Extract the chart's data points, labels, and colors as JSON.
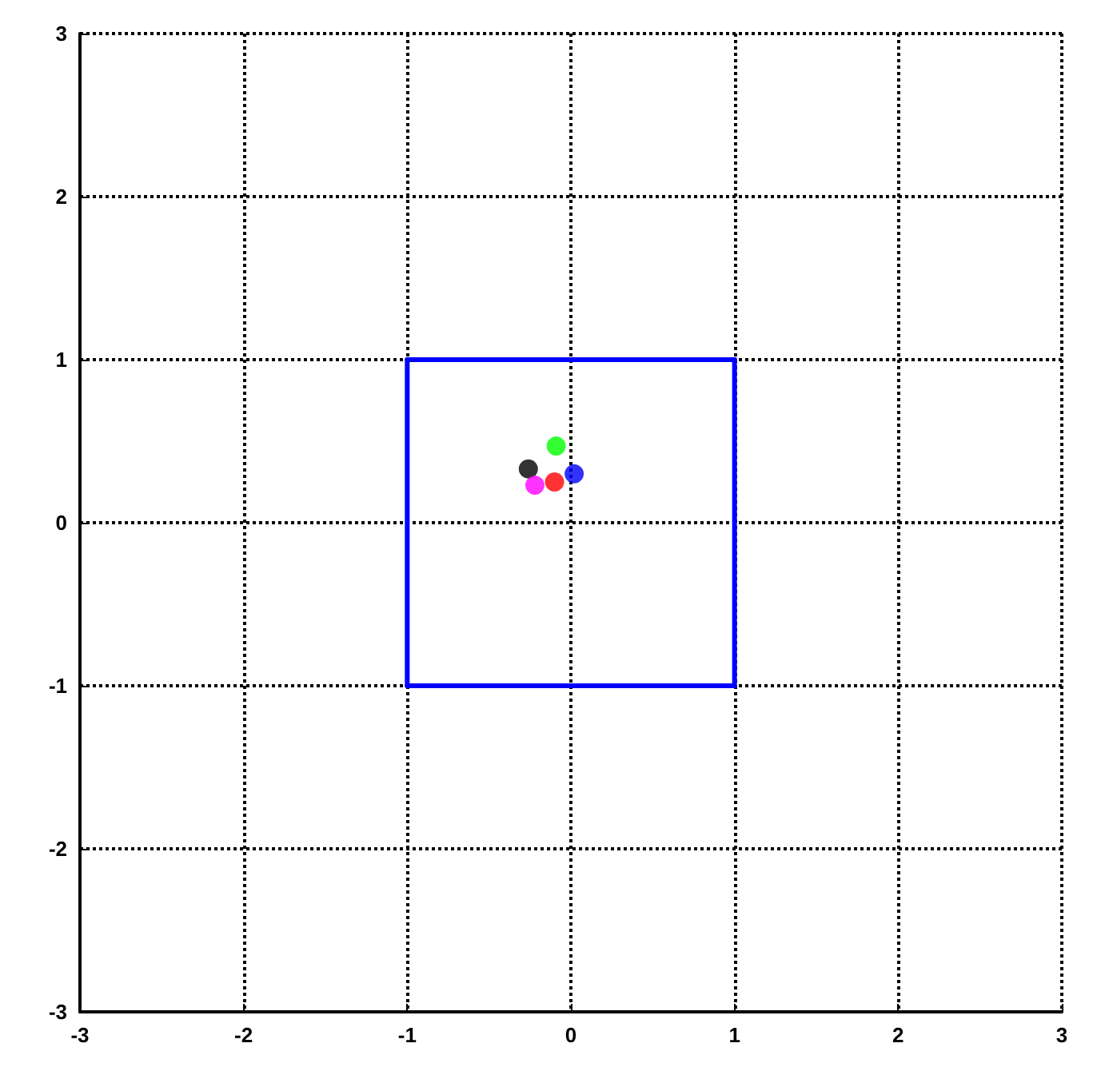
{
  "chart_data": {
    "type": "scatter",
    "xlim": [
      -3,
      3
    ],
    "ylim": [
      -3,
      3
    ],
    "xticks": [
      -3,
      -2,
      -1,
      0,
      1,
      2,
      3
    ],
    "yticks": [
      -3,
      -2,
      -1,
      0,
      1,
      2,
      3
    ],
    "grid": true,
    "marker": "circle",
    "series": [
      {
        "type": "line",
        "color": "#0000ff",
        "x": [
          -1,
          1
        ],
        "values": [
          -1,
          -1
        ],
        "marker": "none",
        "line_style": "solid"
      },
      {
        "type": "line",
        "color": "#0000ff",
        "x": [
          -1,
          1
        ],
        "values": [
          1,
          1
        ],
        "marker": "none",
        "line_style": "solid"
      },
      {
        "type": "line",
        "color": "#0000ff",
        "x": [
          -1,
          -1
        ],
        "values": [
          -1,
          1
        ],
        "marker": "none",
        "line_style": "solid"
      },
      {
        "type": "line",
        "color": "#0000ff",
        "x": [
          1,
          1
        ],
        "values": [
          -1,
          1
        ],
        "marker": "none",
        "line_style": "solid"
      },
      {
        "color": "#000000",
        "x": [
          -0.26
        ],
        "values": [
          0.33
        ]
      },
      {
        "color": "#00ff00",
        "x": [
          -0.09
        ],
        "values": [
          0.47
        ]
      },
      {
        "color": "#ff00ff",
        "x": [
          -0.22
        ],
        "values": [
          0.23
        ]
      },
      {
        "color": "#ff0000",
        "x": [
          -0.1
        ],
        "values": [
          0.25
        ]
      },
      {
        "color": "#0000ff",
        "x": [
          0.02
        ],
        "values": [
          0.3
        ]
      }
    ]
  }
}
